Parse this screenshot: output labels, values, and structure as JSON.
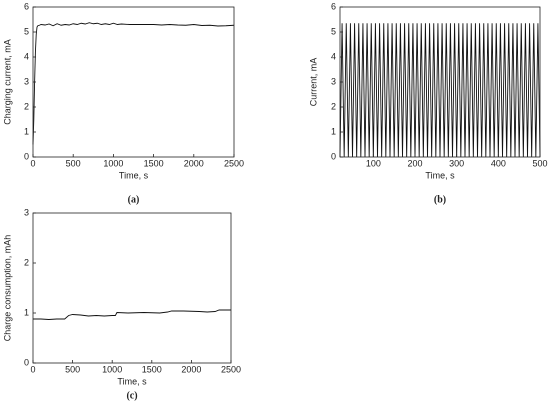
{
  "chart_data": [
    {
      "type": "line",
      "caption": "(a)",
      "xlabel": "Time, s",
      "ylabel": "Charging current, mA",
      "color": "#111111",
      "x": [
        0,
        10,
        20,
        30,
        40,
        50,
        60,
        80,
        100,
        150,
        200,
        250,
        300,
        350,
        400,
        450,
        500,
        550,
        600,
        650,
        700,
        750,
        800,
        850,
        900,
        950,
        1000,
        1050,
        1100,
        1200,
        1300,
        1400,
        1500,
        1600,
        1700,
        1800,
        1900,
        2000,
        2100,
        2200,
        2300,
        2400,
        2500
      ],
      "values": [
        0.5,
        1.5,
        3,
        4.2,
        4.9,
        5.2,
        5.25,
        5.27,
        5.3,
        5.28,
        5.32,
        5.25,
        5.33,
        5.27,
        5.3,
        5.28,
        5.33,
        5.3,
        5.35,
        5.32,
        5.37,
        5.33,
        5.35,
        5.3,
        5.33,
        5.3,
        5.35,
        5.3,
        5.32,
        5.3,
        5.3,
        5.3,
        5.3,
        5.28,
        5.3,
        5.28,
        5.27,
        5.3,
        5.26,
        5.27,
        5.24,
        5.25,
        5.27
      ],
      "xlim": [
        0,
        2500
      ],
      "xticks": [
        0,
        500,
        1000,
        1500,
        2000,
        2500
      ],
      "ylim": [
        0,
        6
      ],
      "yticks": [
        0,
        1,
        2,
        3,
        4,
        5,
        6
      ]
    },
    {
      "type": "line",
      "caption": "(b)",
      "xlabel": "Time, s",
      "ylabel": "Current, mA",
      "color": "#111111",
      "x": [
        20,
        25,
        30,
        35,
        40,
        45,
        50,
        55,
        60,
        65,
        70,
        75,
        80,
        85,
        90,
        95,
        100,
        105,
        110,
        115,
        120,
        125,
        130,
        135,
        140,
        145,
        150,
        155,
        160,
        165,
        170,
        175,
        180,
        185,
        190,
        195,
        200,
        205,
        210,
        215,
        220,
        225,
        230,
        235,
        240,
        245,
        250,
        255,
        260,
        265,
        270,
        275,
        280,
        285,
        290,
        295,
        300,
        305,
        310,
        315,
        320,
        325,
        330,
        335,
        340,
        345,
        350,
        355,
        360,
        365,
        370,
        375,
        380,
        385,
        390,
        395,
        400,
        405,
        410,
        415,
        420,
        425,
        430,
        435,
        440,
        445,
        450,
        455,
        460,
        465,
        470,
        475,
        480,
        485,
        490,
        495,
        500
      ],
      "values": [
        0,
        5.35,
        0,
        5.35,
        0,
        5.35,
        0,
        5.35,
        0,
        5.35,
        0,
        5.35,
        0,
        5.35,
        0,
        5.35,
        0,
        5.35,
        0,
        5.35,
        0,
        5.35,
        0,
        5.35,
        0,
        5.35,
        0,
        5.35,
        0,
        5.35,
        0,
        5.35,
        0,
        5.35,
        0,
        5.35,
        0,
        5.35,
        0,
        5.35,
        0,
        5.35,
        0,
        5.35,
        0,
        5.35,
        0,
        5.35,
        0,
        5.35,
        0,
        5.35,
        0,
        5.35,
        0,
        5.35,
        0,
        5.35,
        0,
        5.35,
        0,
        5.35,
        0,
        5.35,
        0,
        5.35,
        0,
        5.35,
        0,
        5.35,
        0,
        5.35,
        0,
        5.35,
        0,
        5.35,
        0,
        5.35,
        0,
        5.35,
        0,
        5.35,
        0,
        5.35,
        0,
        5.35,
        0,
        5.35,
        0,
        5.35,
        0,
        5.35,
        0,
        5.35,
        0,
        5.35,
        0
      ],
      "xlim": [
        20,
        500
      ],
      "xticks": [
        100,
        200,
        300,
        400,
        500
      ],
      "ylim": [
        0,
        6
      ],
      "yticks": [
        0,
        1,
        2,
        3,
        4,
        5,
        6
      ]
    },
    {
      "type": "line",
      "caption": "(c)",
      "xlabel": "Time, s",
      "ylabel": "Charge consumption, mAh",
      "color": "#111111",
      "x": [
        0,
        100,
        200,
        300,
        400,
        450,
        500,
        600,
        700,
        800,
        900,
        1000,
        1040,
        1060,
        1200,
        1400,
        1600,
        1700,
        1750,
        1900,
        2100,
        2200,
        2300,
        2350,
        2500
      ],
      "values": [
        0.88,
        0.88,
        0.87,
        0.88,
        0.88,
        0.95,
        0.97,
        0.96,
        0.94,
        0.95,
        0.94,
        0.95,
        0.95,
        1.01,
        1.0,
        1.01,
        1.0,
        1.02,
        1.04,
        1.04,
        1.03,
        1.02,
        1.03,
        1.06,
        1.06
      ],
      "xlim": [
        0,
        2500
      ],
      "xticks": [
        0,
        500,
        1000,
        1500,
        2000,
        2500
      ],
      "ylim": [
        0,
        3
      ],
      "yticks": [
        0,
        1,
        2,
        3
      ]
    }
  ]
}
